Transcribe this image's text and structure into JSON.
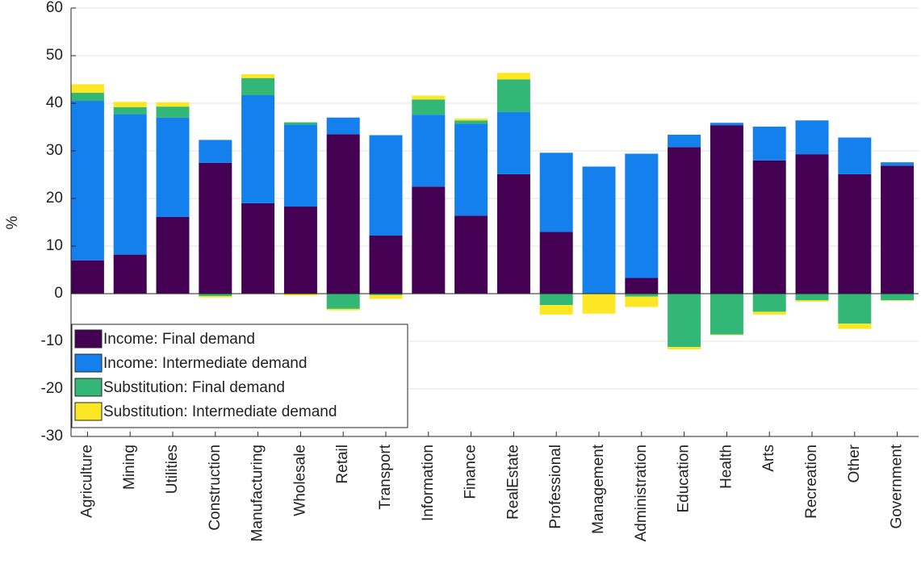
{
  "chart_data": {
    "type": "stacked_bar",
    "y_label": "%",
    "categories": [
      "Agriculture",
      "Mining",
      "Utilities",
      "Construction",
      "Manufacturing",
      "Wholesale",
      "Retail",
      "Transport",
      "Information",
      "Finance",
      "RealEstate",
      "Professional",
      "Management",
      "Administration",
      "Education",
      "Health",
      "Arts",
      "Recreation",
      "Other",
      "Government"
    ],
    "series": [
      {
        "name": "Income: Final demand",
        "color": "#440154",
        "values": [
          7,
          8.2,
          16.1,
          27.5,
          19,
          18.3,
          33.5,
          12.2,
          22.5,
          16.4,
          25.1,
          13,
          0,
          3.3,
          30.8,
          35.4,
          28,
          29.3,
          25.1,
          26.9
        ]
      },
      {
        "name": "Income: Intermediate demand",
        "color": "#1380ee",
        "values": [
          33.5,
          29.5,
          20.9,
          4.8,
          22.7,
          17.2,
          3.5,
          21.1,
          15.1,
          19.3,
          13.1,
          16.6,
          26.7,
          26.1,
          2.6,
          0.5,
          7.1,
          7.1,
          7.7,
          0.7
        ]
      },
      {
        "name": "Substitution: Final demand",
        "color": "#33b776",
        "values": [
          1.7,
          1.5,
          2.3,
          -0.5,
          3.6,
          0.5,
          -3.2,
          -0.3,
          3.2,
          0.7,
          6.8,
          -2.4,
          -0.1,
          -0.6,
          -11.2,
          -8.6,
          -3.8,
          -1.4,
          -6.3,
          -1.4
        ]
      },
      {
        "name": "Substitution: Intermediate demand",
        "color": "#fde725",
        "values": [
          1.8,
          1.1,
          0.9,
          -0.3,
          0.8,
          -0.4,
          -0.3,
          -0.8,
          0.8,
          0.4,
          1.4,
          -2,
          -4.1,
          -2.2,
          -0.5,
          -0.1,
          -0.6,
          -0.3,
          -1.1,
          -0.1
        ]
      }
    ],
    "ylim": [
      -30,
      60
    ],
    "yticks": [
      -30,
      -20,
      -10,
      0,
      10,
      20,
      30,
      40,
      50,
      60
    ],
    "grid": true,
    "legend": "lower left"
  }
}
